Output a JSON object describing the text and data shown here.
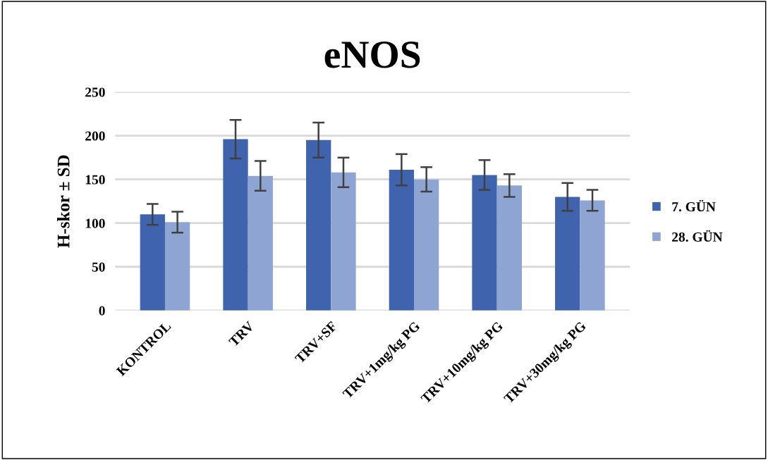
{
  "chart_data": {
    "type": "bar",
    "title": "eNOS",
    "ylabel": "H-skor ± SD",
    "categories": [
      "KONTROL",
      "TRV",
      "TRV+SF",
      "TRV+1mg/kg PG",
      "TRV+10mg/kg PG",
      "TRV+30mg/kg PG"
    ],
    "series": [
      {
        "name": "7. GÜN",
        "color": "#3f64ad",
        "values": [
          110,
          196,
          195,
          161,
          155,
          130
        ],
        "errors": [
          12,
          22,
          20,
          18,
          17,
          16
        ]
      },
      {
        "name": "28. GÜN",
        "color": "#8ea5d4",
        "values": [
          101,
          154,
          158,
          150,
          143,
          126
        ],
        "errors": [
          12,
          17,
          17,
          14,
          13,
          12
        ]
      }
    ],
    "ylim": [
      0,
      250
    ],
    "yticks": [
      0,
      50,
      100,
      150,
      200,
      250
    ],
    "grid": "y",
    "legend": "right"
  }
}
